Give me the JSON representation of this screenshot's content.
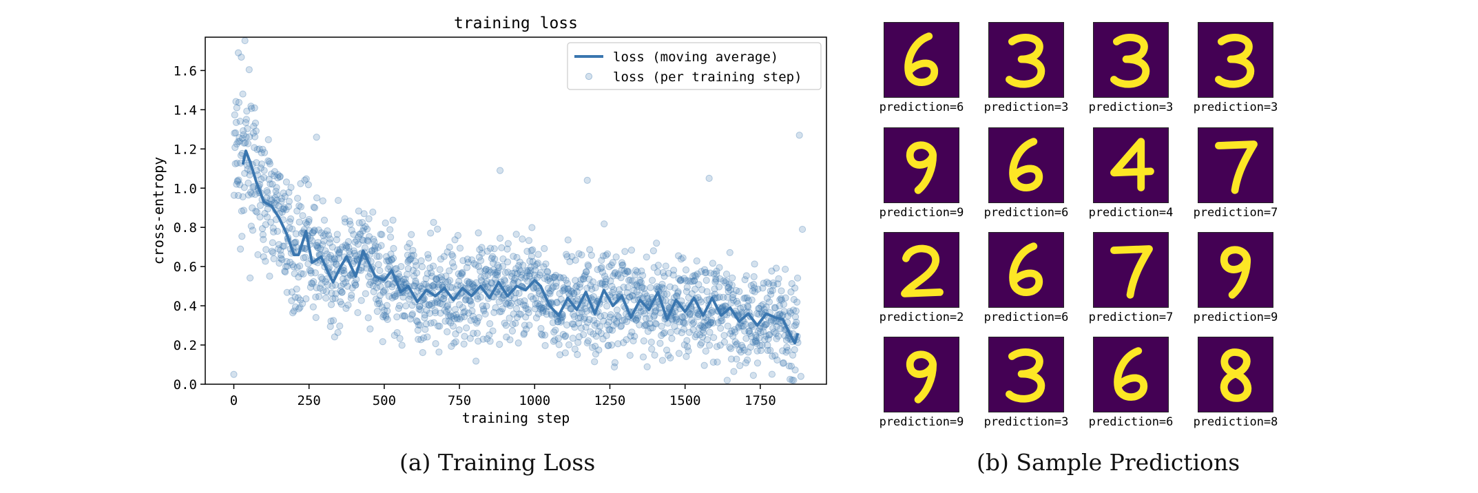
{
  "chart_data": {
    "type": "scatter",
    "title": "training loss",
    "xlabel": "training step",
    "ylabel": "cross-entropy",
    "xlim": [
      -95,
      1970
    ],
    "ylim": [
      0.0,
      1.77
    ],
    "xticks": [
      0,
      250,
      500,
      750,
      1000,
      1250,
      1500,
      1750
    ],
    "yticks": [
      0.0,
      0.2,
      0.4,
      0.6,
      0.8,
      1.0,
      1.2,
      1.4,
      1.6
    ],
    "legend_position": "top-right",
    "grid": false,
    "series": [
      {
        "name": "loss (moving average)",
        "kind": "line",
        "color": "#3a76af",
        "x": [
          30,
          40,
          55,
          75,
          100,
          125,
          150,
          175,
          200,
          215,
          240,
          260,
          290,
          320,
          330,
          355,
          375,
          405,
          430,
          470,
          500,
          525,
          555,
          580,
          610,
          640,
          670,
          700,
          730,
          760,
          790,
          820,
          850,
          880,
          910,
          940,
          970,
          1000,
          1020,
          1050,
          1080,
          1110,
          1140,
          1170,
          1200,
          1230,
          1260,
          1290,
          1320,
          1350,
          1380,
          1410,
          1440,
          1470,
          1500,
          1530,
          1560,
          1590,
          1620,
          1650,
          1680,
          1710,
          1740,
          1770,
          1800,
          1825,
          1850,
          1865,
          1875
        ],
        "y": [
          1.12,
          1.19,
          1.13,
          1.03,
          0.93,
          0.91,
          0.85,
          0.77,
          0.66,
          0.66,
          0.78,
          0.62,
          0.65,
          0.55,
          0.52,
          0.6,
          0.65,
          0.55,
          0.68,
          0.55,
          0.53,
          0.58,
          0.47,
          0.5,
          0.42,
          0.48,
          0.45,
          0.49,
          0.43,
          0.49,
          0.45,
          0.5,
          0.44,
          0.52,
          0.45,
          0.5,
          0.48,
          0.53,
          0.5,
          0.4,
          0.35,
          0.44,
          0.38,
          0.47,
          0.36,
          0.48,
          0.4,
          0.45,
          0.34,
          0.43,
          0.38,
          0.47,
          0.33,
          0.43,
          0.37,
          0.44,
          0.35,
          0.44,
          0.35,
          0.39,
          0.32,
          0.36,
          0.3,
          0.36,
          0.34,
          0.33,
          0.25,
          0.21,
          0.26
        ]
      },
      {
        "name": "loss (per training step)",
        "kind": "scatter",
        "color": "#3a76af"
      }
    ],
    "scatter_notes": "individual per-step points scattered around the moving average; notable outliers",
    "scatter_outliers": [
      {
        "x": 0,
        "y": 0.05
      },
      {
        "x": 15,
        "y": 1.69
      },
      {
        "x": 30,
        "y": 1.48
      },
      {
        "x": 10,
        "y": 1.41
      },
      {
        "x": 275,
        "y": 1.26
      },
      {
        "x": 885,
        "y": 1.09
      },
      {
        "x": 1175,
        "y": 1.04
      },
      {
        "x": 1580,
        "y": 1.05
      },
      {
        "x": 1880,
        "y": 1.27
      },
      {
        "x": 1890,
        "y": 0.79
      },
      {
        "x": 1885,
        "y": 0.04
      }
    ]
  },
  "captions": {
    "a": "(a) Training Loss",
    "b": "(b) Sample Predictions"
  },
  "predictions": [
    {
      "digit": "6",
      "label": "prediction=6"
    },
    {
      "digit": "3",
      "label": "prediction=3"
    },
    {
      "digit": "3",
      "label": "prediction=3"
    },
    {
      "digit": "3",
      "label": "prediction=3"
    },
    {
      "digit": "9",
      "label": "prediction=9"
    },
    {
      "digit": "6",
      "label": "prediction=6"
    },
    {
      "digit": "4",
      "label": "prediction=4"
    },
    {
      "digit": "7",
      "label": "prediction=7"
    },
    {
      "digit": "2",
      "label": "prediction=2"
    },
    {
      "digit": "6",
      "label": "prediction=6"
    },
    {
      "digit": "7",
      "label": "prediction=7"
    },
    {
      "digit": "9",
      "label": "prediction=9"
    },
    {
      "digit": "9",
      "label": "prediction=9"
    },
    {
      "digit": "3",
      "label": "prediction=3"
    },
    {
      "digit": "6",
      "label": "prediction=6"
    },
    {
      "digit": "8",
      "label": "prediction=8"
    }
  ],
  "colors": {
    "image_background": "#440154",
    "digit_stroke": "#fde725"
  }
}
